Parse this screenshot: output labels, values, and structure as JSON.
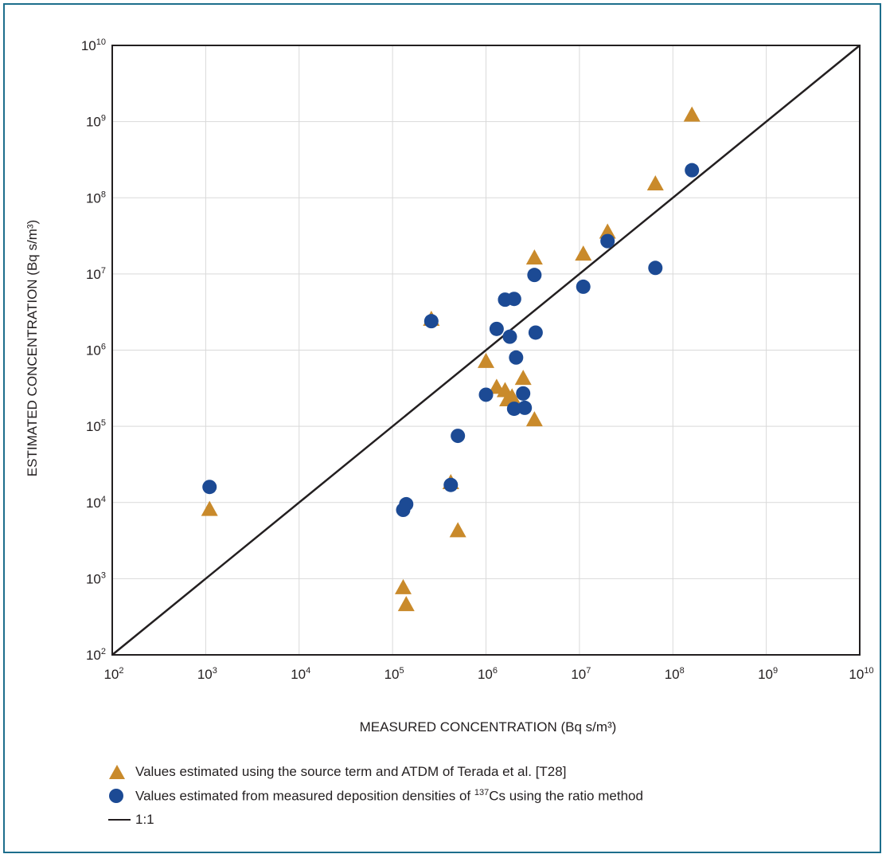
{
  "chart_data": {
    "type": "scatter",
    "xlabel": "MEASURED CONCENTRATION (Bq s/m³)",
    "ylabel": "ESTIMATED CONCENTRATION (Bq s/m³)",
    "x_scale": "log",
    "y_scale": "log",
    "xlim": [
      100,
      10000000000
    ],
    "ylim": [
      100,
      10000000000
    ],
    "x_ticks": [
      "10^2",
      "10^3",
      "10^4",
      "10^5",
      "10^6",
      "10^7",
      "10^8",
      "10^9",
      "10^10"
    ],
    "y_ticks": [
      "10^2",
      "10^3",
      "10^4",
      "10^5",
      "10^6",
      "10^7",
      "10^8",
      "10^9",
      "10^10"
    ],
    "grid": true,
    "colors": {
      "triangle": "#c98a2b",
      "circle": "#1c4a94",
      "line": "#231f20",
      "grid": "#d9d9d9"
    },
    "series": [
      {
        "name": "Values estimated using the source term and ATDM of Terada et al. [T28]",
        "marker": "triangle",
        "points": [
          [
            1100,
            8000
          ],
          [
            130000,
            750
          ],
          [
            140000,
            450
          ],
          [
            260000,
            2500000
          ],
          [
            420000,
            18000
          ],
          [
            500000,
            4200
          ],
          [
            1000000,
            700000
          ],
          [
            1300000,
            320000
          ],
          [
            1600000,
            290000
          ],
          [
            1700000,
            220000
          ],
          [
            1900000,
            240000
          ],
          [
            2500000,
            420000
          ],
          [
            3300000,
            120000
          ],
          [
            3300000,
            16000000
          ],
          [
            11000000,
            18000000
          ],
          [
            20000000,
            35000000
          ],
          [
            65000000,
            150000000
          ],
          [
            160000000,
            1200000000
          ]
        ]
      },
      {
        "name": "Values estimated from measured deposition densities of ¹³⁷Cs using the ratio method",
        "marker": "circle",
        "points": [
          [
            1100,
            16000
          ],
          [
            130000,
            8000
          ],
          [
            140000,
            9500
          ],
          [
            260000,
            2400000
          ],
          [
            420000,
            17000
          ],
          [
            500000,
            75000
          ],
          [
            1000000,
            260000
          ],
          [
            1300000,
            1900000
          ],
          [
            1600000,
            4600000
          ],
          [
            1800000,
            1500000
          ],
          [
            2000000,
            4700000
          ],
          [
            2100000,
            800000
          ],
          [
            2000000,
            170000
          ],
          [
            2500000,
            270000
          ],
          [
            2600000,
            175000
          ],
          [
            3300000,
            9700000
          ],
          [
            3400000,
            1700000
          ],
          [
            11000000,
            6800000
          ],
          [
            20000000,
            27000000
          ],
          [
            65000000,
            12000000
          ],
          [
            160000000,
            230000000
          ]
        ]
      },
      {
        "name": "1:1",
        "marker": "line",
        "points": [
          [
            100,
            100
          ],
          [
            10000000000,
            10000000000
          ]
        ]
      }
    ],
    "legend": {
      "position": "bottom",
      "items": [
        {
          "marker": "triangle",
          "text": "Values estimated using the source term and ATDM of Terada et al. [T28]"
        },
        {
          "marker": "circle",
          "text_before": "Values estimated from measured deposition densities of ",
          "sup": "137",
          "text_after": "Cs using the ratio method"
        },
        {
          "marker": "line",
          "text": "1:1"
        }
      ]
    }
  }
}
